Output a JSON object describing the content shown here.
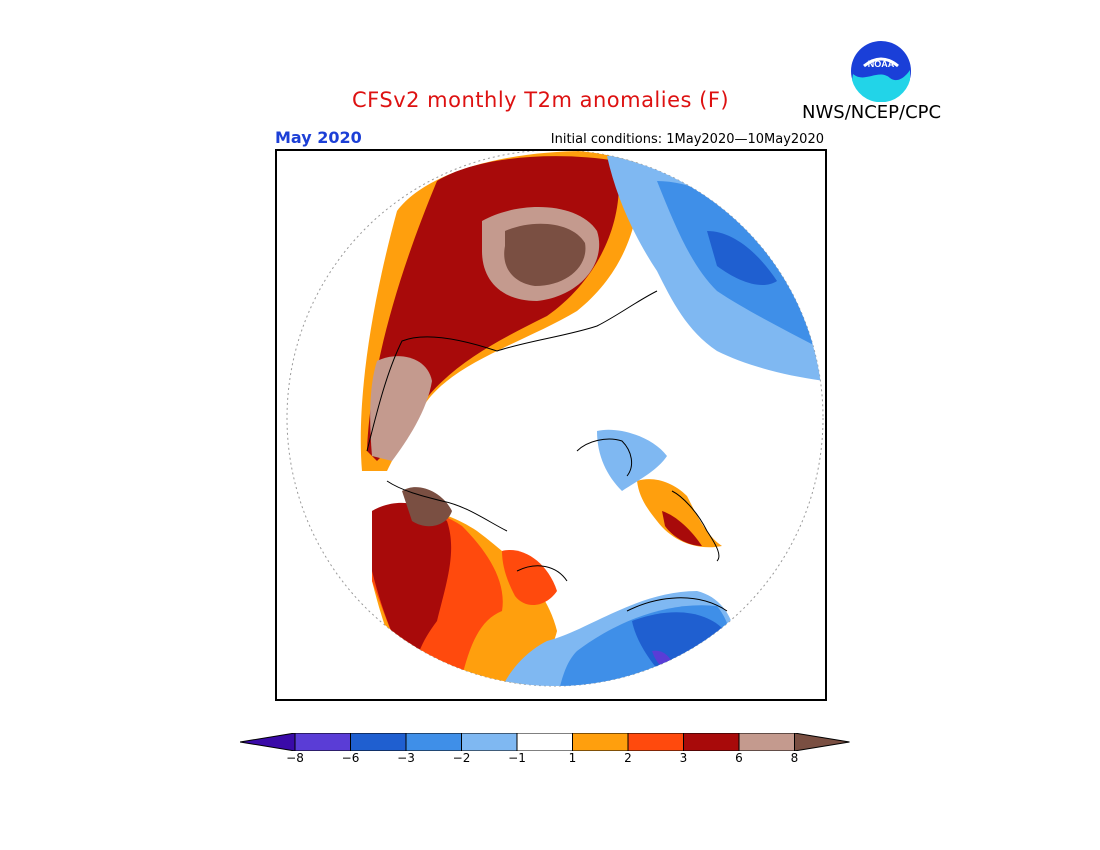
{
  "header": {
    "title": "CFSv2 monthly T2m anomalies (F)",
    "agency": "NWS/NCEP/CPC",
    "logo_text": "NOAA",
    "month": "May 2020",
    "initial_conditions": "Initial conditions: 1May2020—10May2020"
  },
  "map": {
    "projection": "north polar stereographic",
    "variable": "2 m temperature anomaly (F)"
  },
  "colorbar": {
    "colors": [
      "#3a0aa8",
      "#5a3dd6",
      "#1f5fd0",
      "#3f8fe8",
      "#7fb8f2",
      "#ffffff",
      "#ff9f0d",
      "#ff4a0d",
      "#a80a0a",
      "#c49a8e",
      "#7a4f42"
    ],
    "ticks": [
      "−8",
      "−6",
      "−3",
      "−2",
      "−1",
      "1",
      "2",
      "3",
      "6",
      "8"
    ]
  },
  "palette": {
    "title_red": "#dd1111",
    "month_blue": "#1c3fd6"
  }
}
